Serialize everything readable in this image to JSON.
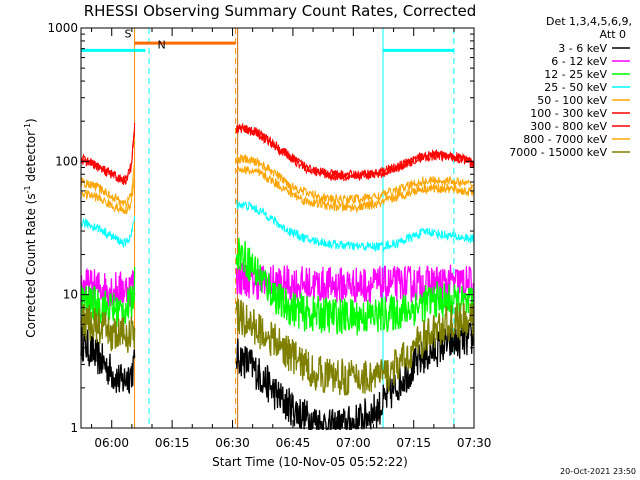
{
  "chart_data": {
    "type": "line",
    "title": "RHESSI Observing Summary Count Rates, Corrected",
    "xlabel": "Start Time (10-Nov-05 05:52:22)",
    "ylabel": "Corrected Count Rate (s",
    "ylabel_sup1": "-1",
    "ylabel_mid": " detector",
    "ylabel_sup2": "-1",
    "ylabel_end": ")",
    "x_range_minutes": [
      0,
      97.6
    ],
    "y_log": true,
    "ylim": [
      1,
      1000
    ],
    "x_ticks": [
      {
        "label": "06:00",
        "t": 7.63
      },
      {
        "label": "06:15",
        "t": 22.63
      },
      {
        "label": "06:30",
        "t": 37.63
      },
      {
        "label": "06:45",
        "t": 52.63
      },
      {
        "label": "07:00",
        "t": 67.63
      },
      {
        "label": "07:15",
        "t": 82.63
      },
      {
        "label": "07:30",
        "t": 97.63
      }
    ],
    "y_ticks": [
      {
        "label": "1",
        "v": 1
      },
      {
        "label": "10",
        "v": 10
      },
      {
        "label": "100",
        "v": 100
      },
      {
        "label": "1000",
        "v": 1000
      }
    ],
    "legend_header": [
      "Det 1,3,4,5,6,9,",
      "Att 0"
    ],
    "legend_placement": "right",
    "data_gap_minutes": [
      13.4,
      38.6
    ],
    "series": [
      {
        "name": "3 - 6 keV",
        "color": "#000000",
        "pts": [
          [
            0,
            4.5
          ],
          [
            5,
            3.2
          ],
          [
            10,
            2.2
          ],
          [
            12.5,
            2.6
          ],
          [
            13.3,
            3.0
          ],
          [
            38.6,
            3.5
          ],
          [
            42,
            3.0
          ],
          [
            46,
            2.2
          ],
          [
            50,
            1.6
          ],
          [
            56,
            1.2
          ],
          [
            62,
            1.0
          ],
          [
            68,
            1.1
          ],
          [
            74,
            1.4
          ],
          [
            80,
            2.4
          ],
          [
            85,
            3.4
          ],
          [
            90,
            4.2
          ],
          [
            95,
            4.6
          ],
          [
            97.6,
            4.6
          ]
        ]
      },
      {
        "name": "6 - 12 keV",
        "color": "#ff00ff",
        "pts": [
          [
            0,
            11.5
          ],
          [
            4,
            11.3
          ],
          [
            8,
            11.0
          ],
          [
            12,
            11.0
          ],
          [
            13.3,
            12.5
          ],
          [
            38.6,
            13.5
          ],
          [
            44,
            12.5
          ],
          [
            52,
            12.0
          ],
          [
            60,
            11.8
          ],
          [
            68,
            11.8
          ],
          [
            76,
            11.9
          ],
          [
            84,
            12.0
          ],
          [
            92,
            12.2
          ],
          [
            97.6,
            12.0
          ]
        ]
      },
      {
        "name": "12 - 25 keV",
        "color": "#00ff00",
        "pts": [
          [
            0,
            9.0
          ],
          [
            5,
            8.2
          ],
          [
            10,
            7.5
          ],
          [
            12.5,
            8.5
          ],
          [
            13.3,
            12.0
          ],
          [
            38.6,
            22.0
          ],
          [
            42,
            17.0
          ],
          [
            46,
            12.0
          ],
          [
            50,
            8.5
          ],
          [
            56,
            7.2
          ],
          [
            62,
            7.0
          ],
          [
            68,
            6.8
          ],
          [
            74,
            7.0
          ],
          [
            80,
            7.5
          ],
          [
            84,
            8.3
          ],
          [
            88,
            9.2
          ],
          [
            92,
            8.8
          ],
          [
            97.6,
            8.2
          ]
        ]
      },
      {
        "name": "25 - 50 keV",
        "color": "#00ffff",
        "pts": [
          [
            0,
            35
          ],
          [
            4,
            32
          ],
          [
            8,
            27
          ],
          [
            11,
            24
          ],
          [
            12.5,
            28
          ],
          [
            13.3,
            38
          ],
          [
            38.6,
            48
          ],
          [
            42,
            46
          ],
          [
            46,
            40
          ],
          [
            50,
            32
          ],
          [
            56,
            26
          ],
          [
            62,
            24
          ],
          [
            68,
            23
          ],
          [
            74,
            23
          ],
          [
            78,
            24
          ],
          [
            82,
            27
          ],
          [
            86,
            30
          ],
          [
            90,
            28
          ],
          [
            94,
            27
          ],
          [
            97.6,
            26
          ]
        ]
      },
      {
        "name": "50 - 100 keV",
        "color": "#ffa500",
        "pts": [
          [
            0,
            58
          ],
          [
            4,
            54
          ],
          [
            8,
            46
          ],
          [
            11,
            42
          ],
          [
            12.5,
            48
          ],
          [
            13.3,
            78
          ],
          [
            38.6,
            88
          ],
          [
            41,
            86
          ],
          [
            44,
            82
          ],
          [
            48,
            70
          ],
          [
            52,
            58
          ],
          [
            56,
            50
          ],
          [
            62,
            46
          ],
          [
            68,
            45
          ],
          [
            74,
            48
          ],
          [
            80,
            56
          ],
          [
            84,
            62
          ],
          [
            88,
            63
          ],
          [
            92,
            62
          ],
          [
            97.6,
            58
          ]
        ]
      },
      {
        "name": "100 - 300 keV",
        "color": "#ff0000",
        "pts": [
          [
            0,
            105
          ],
          [
            3,
            96
          ],
          [
            6,
            85
          ],
          [
            9,
            76
          ],
          [
            11,
            72
          ],
          [
            12.5,
            92
          ],
          [
            13.3,
            180
          ],
          [
            38.6,
            180
          ],
          [
            41,
            175
          ],
          [
            44,
            165
          ],
          [
            48,
            135
          ],
          [
            52,
            108
          ],
          [
            56,
            90
          ],
          [
            62,
            80
          ],
          [
            68,
            79
          ],
          [
            74,
            82
          ],
          [
            80,
            95
          ],
          [
            84,
            108
          ],
          [
            88,
            112
          ],
          [
            92,
            110
          ],
          [
            95,
            106
          ],
          [
            97.6,
            95
          ]
        ]
      },
      {
        "name": "300 - 800 keV",
        "color": "#ff0000",
        "pts": [
          [
            0,
            102
          ],
          [
            3,
            95
          ],
          [
            6,
            84
          ],
          [
            9,
            75
          ],
          [
            11,
            71
          ],
          [
            12.5,
            90
          ],
          [
            13.3,
            176
          ],
          [
            38.6,
            176
          ],
          [
            41,
            171
          ],
          [
            44,
            161
          ],
          [
            48,
            132
          ],
          [
            52,
            106
          ],
          [
            56,
            88
          ],
          [
            62,
            78
          ],
          [
            68,
            77
          ],
          [
            74,
            80
          ],
          [
            80,
            93
          ],
          [
            84,
            106
          ],
          [
            88,
            110
          ],
          [
            92,
            108
          ],
          [
            95,
            104
          ],
          [
            97.6,
            93
          ]
        ]
      },
      {
        "name": "800 - 7000 keV",
        "color": "#ffa500",
        "pts": [
          [
            0,
            70
          ],
          [
            4,
            64
          ],
          [
            8,
            54
          ],
          [
            11,
            48
          ],
          [
            12.5,
            56
          ],
          [
            13.3,
            95
          ],
          [
            38.6,
            105
          ],
          [
            41,
            103
          ],
          [
            44,
            98
          ],
          [
            48,
            82
          ],
          [
            52,
            66
          ],
          [
            56,
            58
          ],
          [
            62,
            52
          ],
          [
            68,
            52
          ],
          [
            74,
            55
          ],
          [
            80,
            63
          ],
          [
            84,
            70
          ],
          [
            88,
            72
          ],
          [
            92,
            71
          ],
          [
            97.6,
            66
          ]
        ]
      },
      {
        "name": "7000 - 15000 keV",
        "color": "#808000",
        "pts": [
          [
            0,
            6.5
          ],
          [
            4,
            5.8
          ],
          [
            8,
            5.0
          ],
          [
            12,
            5.0
          ],
          [
            13.3,
            5.3
          ],
          [
            38.6,
            7.0
          ],
          [
            42,
            6.0
          ],
          [
            46,
            5.0
          ],
          [
            50,
            4.0
          ],
          [
            54,
            3.2
          ],
          [
            58,
            2.6
          ],
          [
            64,
            2.4
          ],
          [
            70,
            2.4
          ],
          [
            76,
            2.5
          ],
          [
            80,
            3.2
          ],
          [
            84,
            4.4
          ],
          [
            88,
            5.4
          ],
          [
            92,
            6.2
          ],
          [
            97.6,
            6.4
          ]
        ]
      }
    ],
    "overlays": {
      "cyan_bars": [
        {
          "label": "",
          "t0": 0,
          "t1": 16.0,
          "v": 680,
          "color": "#00ffff"
        },
        {
          "label": "",
          "t0": 75.0,
          "t1": 92.6,
          "v": 680,
          "color": "#00ffff"
        }
      ],
      "orange_bar": {
        "t0": 13.3,
        "t1": 38.4,
        "v": 770,
        "color": "#ff6a00"
      },
      "marker_s": {
        "label": "S",
        "t": 10.8,
        "v": 850,
        "color": "#ff6a00"
      },
      "marker_n": {
        "label": "N",
        "t": 19.0,
        "v": 700,
        "color": "#00ffff"
      },
      "v_lines": [
        {
          "t": 13.3,
          "color": "#ff8c00",
          "dashed": false
        },
        {
          "t": 16.9,
          "color": "#00ffff",
          "dashed": true
        },
        {
          "t": 38.4,
          "color": "#ff8c00",
          "dashed": true
        },
        {
          "t": 38.9,
          "color": "#cc6600",
          "dashed": false
        },
        {
          "t": 75.0,
          "color": "#00ffff",
          "dashed": false
        },
        {
          "t": 92.6,
          "color": "#00ffff",
          "dashed": true
        }
      ]
    }
  },
  "timestamp": "20-Oct-2021 23:50"
}
